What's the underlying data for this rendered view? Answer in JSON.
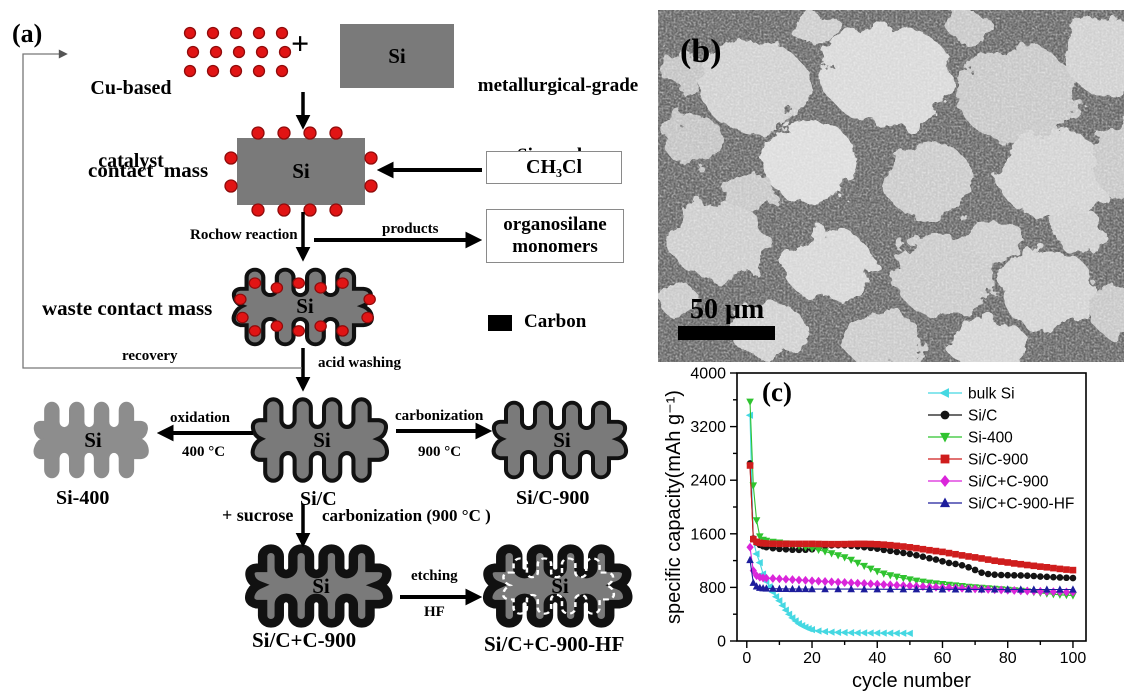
{
  "figure": {
    "panel_a_label": "(a)",
    "panel_b_label": "(b)",
    "panel_c_label": "(c)"
  },
  "panel_a": {
    "cu_catalyst": [
      "Cu-based",
      "catalyst"
    ],
    "plus": "+",
    "si": "Si",
    "mg_powder": [
      "metallurgical-grade",
      "Si powder"
    ],
    "contact_mass": "contact  mass",
    "ch3cl": "CH₃Cl",
    "rochow": "Rochow reaction",
    "products": "products",
    "organosilane": [
      "organosilane",
      "monomers"
    ],
    "waste_contact_mass": "waste contact mass",
    "carbon": "Carbon",
    "recovery": "recovery",
    "acid_washing": "acid washing",
    "oxidation": [
      "oxidation",
      "400 °C"
    ],
    "carbonization": [
      "carbonization",
      "900 °C"
    ],
    "si_400": "Si-400",
    "si_c": "Si/C",
    "sucrose": "+ sucrose",
    "carbonization_900": "carbonization (900 °C )",
    "si_c_900": "Si/C-900",
    "si_cc_900": "Si/C+C-900",
    "etching": [
      "etching",
      "HF"
    ],
    "si_cc_900_hf": "Si/C+C-900-HF",
    "colors": {
      "si_gray": "#7a7a7a",
      "si400_gray": "#8d8d8d",
      "dot_red": "#e11414",
      "outline_black": "#111111"
    }
  },
  "panel_b": {
    "scale_bar_label": "50 μm"
  },
  "chart_data": {
    "type": "line",
    "panel_label": "(c)",
    "title": "",
    "xlabel": "cycle number",
    "ylabel": "specific capacity(mAh g⁻¹)",
    "xlim": [
      -3,
      104
    ],
    "ylim": [
      0,
      4000
    ],
    "x_ticks": [
      0,
      20,
      40,
      60,
      80,
      100
    ],
    "x_minor_step": 10,
    "y_ticks": [
      0,
      800,
      1600,
      2400,
      3200,
      4000
    ],
    "y_minor_step": 400,
    "grid": false,
    "legend_position": "top-right",
    "series": [
      {
        "name": "bulk Si",
        "color": "#45d8e2",
        "marker": "triangle-left",
        "points": [
          [
            1,
            3370
          ],
          [
            2,
            1500
          ],
          [
            3,
            1300
          ],
          [
            4,
            1170
          ],
          [
            5,
            1000
          ],
          [
            6,
            890
          ],
          [
            7,
            810
          ],
          [
            8,
            730
          ],
          [
            9,
            660
          ],
          [
            10,
            600
          ],
          [
            11,
            530
          ],
          [
            12,
            460
          ],
          [
            13,
            400
          ],
          [
            14,
            345
          ],
          [
            15,
            300
          ],
          [
            16,
            260
          ],
          [
            17,
            230
          ],
          [
            18,
            205
          ],
          [
            19,
            185
          ],
          [
            20,
            170
          ],
          [
            22,
            150
          ],
          [
            24,
            140
          ],
          [
            26,
            133
          ],
          [
            28,
            128
          ],
          [
            30,
            126
          ],
          [
            32,
            124
          ],
          [
            34,
            122
          ],
          [
            36,
            121
          ],
          [
            38,
            120
          ],
          [
            40,
            119
          ],
          [
            42,
            118
          ],
          [
            44,
            117
          ],
          [
            46,
            116
          ],
          [
            48,
            115
          ],
          [
            50,
            114
          ]
        ]
      },
      {
        "name": "Si/C",
        "color": "#141414",
        "marker": "circle",
        "points": [
          [
            1,
            2650
          ],
          [
            2,
            1530
          ],
          [
            3,
            1470
          ],
          [
            4,
            1435
          ],
          [
            5,
            1415
          ],
          [
            6,
            1400
          ],
          [
            8,
            1385
          ],
          [
            10,
            1375
          ],
          [
            12,
            1368
          ],
          [
            14,
            1362
          ],
          [
            16,
            1360
          ],
          [
            18,
            1362
          ],
          [
            20,
            1368
          ],
          [
            22,
            1392
          ],
          [
            24,
            1420
          ],
          [
            26,
            1428
          ],
          [
            28,
            1430
          ],
          [
            30,
            1428
          ],
          [
            32,
            1420
          ],
          [
            34,
            1412
          ],
          [
            36,
            1400
          ],
          [
            38,
            1390
          ],
          [
            40,
            1378
          ],
          [
            42,
            1360
          ],
          [
            44,
            1345
          ],
          [
            46,
            1330
          ],
          [
            48,
            1315
          ],
          [
            50,
            1300
          ],
          [
            52,
            1280
          ],
          [
            54,
            1258
          ],
          [
            56,
            1235
          ],
          [
            58,
            1215
          ],
          [
            60,
            1190
          ],
          [
            62,
            1165
          ],
          [
            64,
            1150
          ],
          [
            66,
            1130
          ],
          [
            68,
            1100
          ],
          [
            70,
            1060
          ],
          [
            72,
            1020
          ],
          [
            74,
            1000
          ],
          [
            76,
            990
          ],
          [
            78,
            985
          ],
          [
            80,
            982
          ],
          [
            82,
            980
          ],
          [
            84,
            978
          ],
          [
            86,
            975
          ],
          [
            88,
            970
          ],
          [
            90,
            962
          ],
          [
            92,
            958
          ],
          [
            94,
            952
          ],
          [
            96,
            948
          ],
          [
            98,
            944
          ],
          [
            100,
            940
          ]
        ]
      },
      {
        "name": "Si-400",
        "color": "#2fc32f",
        "marker": "triangle-down",
        "points": [
          [
            1,
            3570
          ],
          [
            2,
            2320
          ],
          [
            3,
            1800
          ],
          [
            4,
            1560
          ],
          [
            5,
            1510
          ],
          [
            6,
            1495
          ],
          [
            8,
            1480
          ],
          [
            10,
            1468
          ],
          [
            12,
            1455
          ],
          [
            14,
            1438
          ],
          [
            16,
            1420
          ],
          [
            18,
            1400
          ],
          [
            20,
            1382
          ],
          [
            22,
            1360
          ],
          [
            24,
            1335
          ],
          [
            26,
            1308
          ],
          [
            28,
            1278
          ],
          [
            30,
            1248
          ],
          [
            32,
            1210
          ],
          [
            34,
            1165
          ],
          [
            36,
            1120
          ],
          [
            38,
            1078
          ],
          [
            40,
            1040
          ],
          [
            42,
            1005
          ],
          [
            44,
            980
          ],
          [
            46,
            958
          ],
          [
            48,
            938
          ],
          [
            50,
            918
          ],
          [
            52,
            900
          ],
          [
            54,
            885
          ],
          [
            56,
            870
          ],
          [
            58,
            858
          ],
          [
            60,
            848
          ],
          [
            62,
            838
          ],
          [
            64,
            828
          ],
          [
            66,
            818
          ],
          [
            68,
            808
          ],
          [
            70,
            800
          ],
          [
            72,
            792
          ],
          [
            74,
            785
          ],
          [
            76,
            778
          ],
          [
            78,
            770
          ],
          [
            80,
            762
          ],
          [
            82,
            755
          ],
          [
            84,
            748
          ],
          [
            86,
            738
          ],
          [
            88,
            728
          ],
          [
            90,
            718
          ],
          [
            92,
            708
          ],
          [
            94,
            698
          ],
          [
            96,
            690
          ],
          [
            98,
            684
          ],
          [
            100,
            680
          ]
        ]
      },
      {
        "name": "Si/C-900",
        "color": "#cf1d1d",
        "marker": "square",
        "points": [
          [
            1,
            2620
          ],
          [
            2,
            1520
          ],
          [
            3,
            1480
          ],
          [
            4,
            1465
          ],
          [
            5,
            1458
          ],
          [
            6,
            1455
          ],
          [
            8,
            1452
          ],
          [
            10,
            1450
          ],
          [
            12,
            1450
          ],
          [
            14,
            1450
          ],
          [
            16,
            1450
          ],
          [
            18,
            1450
          ],
          [
            20,
            1450
          ],
          [
            22,
            1448
          ],
          [
            24,
            1446
          ],
          [
            26,
            1445
          ],
          [
            28,
            1445
          ],
          [
            30,
            1446
          ],
          [
            32,
            1448
          ],
          [
            34,
            1450
          ],
          [
            36,
            1450
          ],
          [
            38,
            1448
          ],
          [
            40,
            1444
          ],
          [
            42,
            1438
          ],
          [
            44,
            1430
          ],
          [
            46,
            1420
          ],
          [
            48,
            1410
          ],
          [
            50,
            1398
          ],
          [
            52,
            1385
          ],
          [
            54,
            1370
          ],
          [
            56,
            1355
          ],
          [
            58,
            1342
          ],
          [
            60,
            1330
          ],
          [
            62,
            1312
          ],
          [
            64,
            1295
          ],
          [
            66,
            1278
          ],
          [
            68,
            1262
          ],
          [
            70,
            1248
          ],
          [
            72,
            1232
          ],
          [
            74,
            1215
          ],
          [
            76,
            1198
          ],
          [
            78,
            1185
          ],
          [
            80,
            1172
          ],
          [
            82,
            1158
          ],
          [
            84,
            1146
          ],
          [
            86,
            1134
          ],
          [
            88,
            1122
          ],
          [
            90,
            1110
          ],
          [
            92,
            1100
          ],
          [
            94,
            1088
          ],
          [
            96,
            1076
          ],
          [
            98,
            1066
          ],
          [
            100,
            1058
          ]
        ]
      },
      {
        "name": "Si/C+C-900",
        "color": "#da25da",
        "marker": "diamond",
        "points": [
          [
            1,
            1400
          ],
          [
            2,
            1050
          ],
          [
            3,
            975
          ],
          [
            4,
            952
          ],
          [
            5,
            942
          ],
          [
            6,
            938
          ],
          [
            8,
            933
          ],
          [
            10,
            928
          ],
          [
            12,
            922
          ],
          [
            14,
            916
          ],
          [
            16,
            910
          ],
          [
            18,
            905
          ],
          [
            20,
            898
          ],
          [
            22,
            893
          ],
          [
            24,
            888
          ],
          [
            26,
            883
          ],
          [
            28,
            878
          ],
          [
            30,
            873
          ],
          [
            32,
            868
          ],
          [
            34,
            863
          ],
          [
            36,
            858
          ],
          [
            38,
            853
          ],
          [
            40,
            848
          ],
          [
            42,
            843
          ],
          [
            44,
            838
          ],
          [
            46,
            833
          ],
          [
            48,
            828
          ],
          [
            50,
            823
          ],
          [
            52,
            818
          ],
          [
            54,
            813
          ],
          [
            56,
            808
          ],
          [
            58,
            803
          ],
          [
            60,
            798
          ],
          [
            62,
            794
          ],
          [
            64,
            790
          ],
          [
            66,
            786
          ],
          [
            68,
            782
          ],
          [
            70,
            778
          ],
          [
            72,
            774
          ],
          [
            74,
            770
          ],
          [
            76,
            766
          ],
          [
            78,
            762
          ],
          [
            80,
            758
          ],
          [
            82,
            754
          ],
          [
            84,
            750
          ],
          [
            86,
            747
          ],
          [
            88,
            744
          ],
          [
            90,
            741
          ],
          [
            92,
            738
          ],
          [
            94,
            736
          ],
          [
            96,
            734
          ],
          [
            98,
            732
          ],
          [
            100,
            730
          ]
        ]
      },
      {
        "name": "Si/C+C-900-HF",
        "color": "#1d1d9c",
        "marker": "triangle-up",
        "points": [
          [
            1,
            1210
          ],
          [
            2,
            870
          ],
          [
            3,
            815
          ],
          [
            4,
            795
          ],
          [
            5,
            788
          ],
          [
            6,
            784
          ],
          [
            8,
            781
          ],
          [
            10,
            779
          ],
          [
            12,
            778
          ],
          [
            14,
            777
          ],
          [
            16,
            776
          ],
          [
            18,
            776
          ],
          [
            20,
            775
          ],
          [
            24,
            775
          ],
          [
            28,
            774
          ],
          [
            32,
            774
          ],
          [
            36,
            773
          ],
          [
            40,
            773
          ],
          [
            44,
            772
          ],
          [
            48,
            772
          ],
          [
            52,
            772
          ],
          [
            56,
            771
          ],
          [
            60,
            771
          ],
          [
            64,
            771
          ],
          [
            68,
            770
          ],
          [
            72,
            770
          ],
          [
            76,
            770
          ],
          [
            80,
            770
          ],
          [
            84,
            769
          ],
          [
            88,
            769
          ],
          [
            92,
            769
          ],
          [
            96,
            768
          ],
          [
            100,
            768
          ]
        ]
      }
    ]
  }
}
